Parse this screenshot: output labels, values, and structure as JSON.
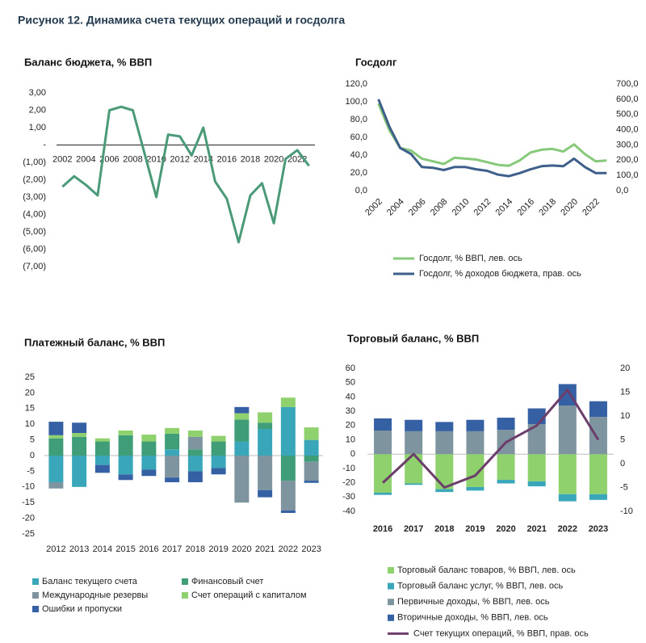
{
  "title": "Рисунок 12. Динамика счета текущих операций и госдолга",
  "chart_data": [
    {
      "type": "line",
      "title": "Баланс бюджета, % ВВП",
      "categories": [
        "2002",
        null,
        "2004",
        null,
        "2006",
        null,
        "2008",
        null,
        "2010",
        null,
        "2012",
        null,
        "2014",
        null,
        "2016",
        null,
        "2018",
        null,
        "2020",
        null,
        "2022",
        null
      ],
      "series": [
        {
          "name": "Баланс бюджета",
          "color": "#4a9a78",
          "values": [
            -2.4,
            -1.8,
            -2.3,
            -2.9,
            2.0,
            2.2,
            2.0,
            -0.5,
            -3.0,
            0.6,
            0.5,
            -0.6,
            1.0,
            -2.1,
            -3.1,
            -5.6,
            -2.9,
            -2.2,
            -4.5,
            -0.8,
            -0.3,
            -1.2
          ]
        }
      ],
      "ylim": [
        -7,
        3
      ],
      "yticks": [
        {
          "value": 3,
          "label": "3,00"
        },
        {
          "value": 2,
          "label": "2,00"
        },
        {
          "value": 1,
          "label": "1,00"
        },
        {
          "value": 0,
          "label": "-"
        },
        {
          "value": -1,
          "label": "(1,00)"
        },
        {
          "value": -2,
          "label": "(2,00)"
        },
        {
          "value": -3,
          "label": "(3,00)"
        },
        {
          "value": -4,
          "label": "(4,00)"
        },
        {
          "value": -5,
          "label": "(5,00)"
        },
        {
          "value": -6,
          "label": "(6,00)"
        },
        {
          "value": -7,
          "label": "(7,00)"
        }
      ],
      "grid": false
    },
    {
      "type": "line",
      "title": "Госдолг",
      "categories": [
        "2002",
        null,
        "2004",
        null,
        "2006",
        null,
        "2008",
        null,
        "2010",
        null,
        "2012",
        null,
        "2014",
        null,
        "2016",
        null,
        "2018",
        null,
        "2020",
        null,
        "2022",
        null
      ],
      "series": [
        {
          "name": "Госдолг, % ВВП, лев. ось",
          "color": "#86c97a",
          "values": [
            98,
            68,
            48,
            45,
            36,
            33,
            30,
            37,
            36,
            35,
            32,
            29,
            28,
            34,
            43,
            46,
            47,
            44,
            52,
            41,
            33,
            34
          ]
        },
        {
          "name": "Госдолг, % доходов бюджета, прав. ось",
          "color": "#3e5f8a",
          "axis": "y2",
          "values": [
            600,
            420,
            280,
            240,
            155,
            150,
            135,
            155,
            155,
            140,
            130,
            105,
            95,
            115,
            140,
            160,
            165,
            160,
            210,
            155,
            115,
            115
          ]
        }
      ],
      "ylim": [
        0,
        120
      ],
      "yticks": [
        {
          "value": 0,
          "label": "0,0"
        },
        {
          "value": 20,
          "label": "20,0"
        },
        {
          "value": 40,
          "label": "40,0"
        },
        {
          "value": 60,
          "label": "60,0"
        },
        {
          "value": 80,
          "label": "80,0"
        },
        {
          "value": 100,
          "label": "100,0"
        },
        {
          "value": 120,
          "label": "120,0"
        }
      ],
      "y2lim": [
        0,
        700
      ],
      "y2ticks": [
        {
          "value": 0,
          "label": "0,0"
        },
        {
          "value": 100,
          "label": "100,0"
        },
        {
          "value": 200,
          "label": "200,0"
        },
        {
          "value": 300,
          "label": "300,0"
        },
        {
          "value": 400,
          "label": "400,0"
        },
        {
          "value": 500,
          "label": "500,0"
        },
        {
          "value": 600,
          "label": "600,0"
        },
        {
          "value": 700,
          "label": "700,0"
        }
      ],
      "grid": false,
      "legend": "bottom"
    },
    {
      "type": "bar",
      "stacked": true,
      "title": "Платежный баланс, % ВВП",
      "categories": [
        "2012",
        "2013",
        "2014",
        "2015",
        "2016",
        "2017",
        "2018",
        "2019",
        "2020",
        "2021",
        "2022",
        "2023"
      ],
      "series": [
        {
          "name": "Баланс текущего счета",
          "color": "#3aa6b9",
          "values": [
            -8.5,
            -10,
            -3,
            -6,
            -4.5,
            2,
            -5,
            -4,
            4.5,
            8.5,
            15.5,
            5
          ]
        },
        {
          "name": "Финансовый счет",
          "color": "#3f9e78",
          "values": [
            5.5,
            6,
            4.5,
            6.5,
            4.5,
            5,
            2,
            4.5,
            7,
            2,
            -8,
            -2
          ]
        },
        {
          "name": "Международные резервы",
          "color": "#7e95a0",
          "values": [
            -2,
            0,
            0,
            0,
            0,
            -7,
            4,
            0,
            -15,
            -11,
            -9.5,
            -6
          ]
        },
        {
          "name": "Счет операций с капиталом",
          "color": "#8fd16d",
          "values": [
            1,
            1.2,
            1,
            1.5,
            2.2,
            1.8,
            2,
            1.8,
            2,
            3.3,
            3,
            4
          ]
        },
        {
          "name": "Ошибки и пропуски",
          "color": "#3660a4",
          "values": [
            4.3,
            3.3,
            -2.5,
            -1.8,
            -2,
            -1.5,
            -3.5,
            -2,
            2,
            -2.3,
            -0.8,
            -0.7
          ]
        }
      ],
      "ylim": [
        -25,
        25
      ],
      "yticks": [
        25,
        20,
        15,
        10,
        5,
        0,
        -5,
        -10,
        -15,
        -20,
        -25
      ],
      "grid": false,
      "legend": "bottom"
    },
    {
      "type": "bar",
      "stacked": true,
      "title": "Торговый баланс, % ВВП",
      "categories": [
        "2016",
        "2017",
        "2018",
        "2019",
        "2020",
        "2021",
        "2022",
        "2023"
      ],
      "series": [
        {
          "name": "Торговый баланс товаров, % ВВП, лев. ось",
          "color": "#8fd16d",
          "values": [
            -27,
            -20.5,
            -24.5,
            -23,
            -18,
            -19,
            -28,
            -28
          ]
        },
        {
          "name": "Торговый баланс услуг, % ВВП, лев. ось",
          "color": "#3aa6b9",
          "values": [
            -1.5,
            -1,
            -2,
            -2.5,
            -2.5,
            -3.5,
            -5,
            -4
          ]
        },
        {
          "name": "Первичные доходы, % ВВП, лев. ось",
          "color": "#7e95a0",
          "values": [
            16.5,
            16,
            16,
            16,
            17,
            21,
            34,
            26
          ]
        },
        {
          "name": "Вторичные доходы, % ВВП, лев. ось",
          "color": "#3660a4",
          "values": [
            8.5,
            8,
            6.5,
            8,
            8.5,
            11,
            15,
            11
          ]
        },
        {
          "name": "Счет текущих операций, % ВВП, прав. ось",
          "color": "#6b3e6b",
          "type": "line",
          "axis": "y2",
          "values": [
            -4,
            2,
            -5,
            -2.5,
            4.5,
            8,
            15.5,
            5
          ]
        }
      ],
      "ylim": [
        -40,
        60
      ],
      "yticks": [
        60,
        50,
        40,
        30,
        20,
        10,
        0,
        -10,
        -20,
        -30,
        -40
      ],
      "y2lim": [
        -10,
        20
      ],
      "y2ticks": [
        20,
        15,
        10,
        5,
        0,
        -5,
        -10
      ],
      "grid": false,
      "legend": "bottom"
    }
  ]
}
